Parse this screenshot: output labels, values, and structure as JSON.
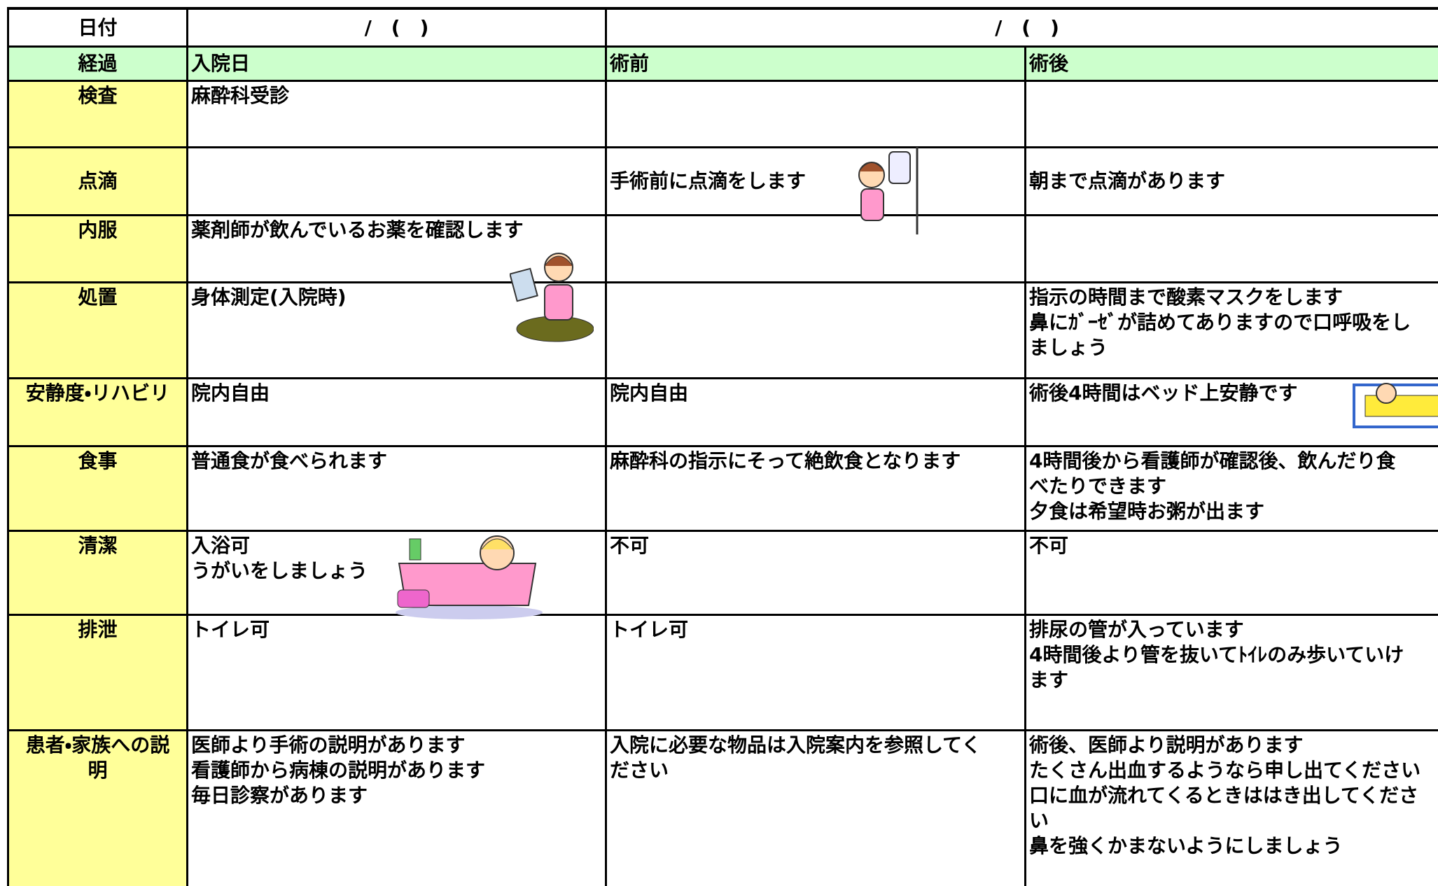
{
  "header": {
    "label": "日付",
    "dates": [
      "/　(　)",
      "/　(　)"
    ]
  },
  "progress": {
    "label": "経過",
    "stages": [
      "入院日",
      "術前",
      "術後"
    ]
  },
  "rows": [
    {
      "label": [
        "検査"
      ],
      "cells": [
        [
          "麻酔科受診"
        ],
        [],
        []
      ]
    },
    {
      "label": [
        "点滴"
      ],
      "cells": [
        [],
        [
          "手術前に点滴をします"
        ],
        [
          "朝まで点滴があります"
        ]
      ]
    },
    {
      "label": [
        "内服"
      ],
      "cells": [
        [
          "薬剤師が飲んでいるお薬を確認します"
        ],
        [],
        []
      ]
    },
    {
      "label": [
        "処置"
      ],
      "cells": [
        [
          "身体測定(入院時)"
        ],
        [],
        [
          "指示の時間まで酸素マスクをします",
          "鼻にｶﾞｰｾﾞが詰めてありますので口呼吸をし",
          "ましょう"
        ]
      ]
    },
    {
      "label": [
        "安静度・リハビリ"
      ],
      "cells": [
        [
          "院内自由"
        ],
        [
          "院内自由"
        ],
        [
          "術後4時間はベッド上安静です"
        ]
      ]
    },
    {
      "label": [
        "食事"
      ],
      "cells": [
        [
          "普通食が食べられます"
        ],
        [
          "麻酔科の指示にそって絶飲食となります"
        ],
        [
          "4時間後から看護師が確認後、飲んだり食",
          "べたりできます",
          "夕食は希望時お粥が出ます"
        ]
      ]
    },
    {
      "label": [
        "清潔"
      ],
      "cells": [
        [
          "入浴可",
          "うがいをしましょう"
        ],
        [
          "不可"
        ],
        [
          "不可"
        ]
      ]
    },
    {
      "label": [
        "排泄"
      ],
      "cells": [
        [
          "トイレ可"
        ],
        [
          "トイレ可"
        ],
        [
          "排尿の管が入っています",
          "4時間後より管を抜いてﾄｲﾚのみ歩いていけ",
          "ます"
        ]
      ]
    },
    {
      "label": [
        "患者・家族への説",
        "明"
      ],
      "cells": [
        [
          "医師より手術の説明があります",
          "看護師から病棟の説明があります",
          "毎日診察があります"
        ],
        [
          "入院に必要な物品は入院案内を参照してく",
          "ださい"
        ],
        [
          "術後、医師より説明があります",
          "たくさん出血するようなら申し出てください",
          "口に血が流れてくるときははき出してくださ",
          "い",
          "鼻を強くかまないようにしましょう"
        ]
      ]
    }
  ]
}
